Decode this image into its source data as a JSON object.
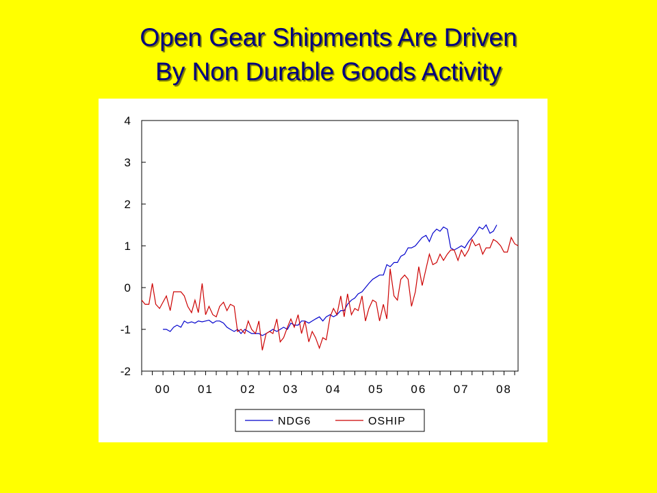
{
  "slide": {
    "title_line1": "Open Gear Shipments Are Driven",
    "title_line2": "By Non Durable Goods Activity"
  },
  "colors": {
    "background": "#FFFF00",
    "title": "#000080",
    "ndg6": "#0000CC",
    "oship": "#CC0000"
  },
  "chart_data": {
    "type": "line",
    "title": "",
    "xlabel": "",
    "ylabel": "",
    "ylim": [
      -2,
      4
    ],
    "yticks": [
      4,
      3,
      2,
      1,
      0,
      -1,
      -2
    ],
    "xlim": [
      2000.0,
      2008.83
    ],
    "xticks": [
      {
        "label": "00",
        "value": 2000.5
      },
      {
        "label": "01",
        "value": 2001.5
      },
      {
        "label": "02",
        "value": 2002.5
      },
      {
        "label": "03",
        "value": 2003.5
      },
      {
        "label": "04",
        "value": 2004.5
      },
      {
        "label": "05",
        "value": 2005.5
      },
      {
        "label": "06",
        "value": 2006.5
      },
      {
        "label": "07",
        "value": 2007.5
      },
      {
        "label": "08",
        "value": 2008.5
      }
    ],
    "grid": false,
    "legend": "bottom",
    "series": [
      {
        "name": "NDG6",
        "color": "#0000CC",
        "x": [
          2000.5,
          2000.58,
          2000.67,
          2000.75,
          2000.83,
          2000.92,
          2001.0,
          2001.08,
          2001.17,
          2001.25,
          2001.33,
          2001.42,
          2001.5,
          2001.58,
          2001.67,
          2001.75,
          2001.83,
          2001.92,
          2002.0,
          2002.08,
          2002.17,
          2002.25,
          2002.33,
          2002.42,
          2002.5,
          2002.58,
          2002.67,
          2002.75,
          2002.83,
          2002.92,
          2003.0,
          2003.08,
          2003.17,
          2003.25,
          2003.33,
          2003.42,
          2003.5,
          2003.58,
          2003.67,
          2003.75,
          2003.83,
          2003.92,
          2004.0,
          2004.08,
          2004.17,
          2004.25,
          2004.33,
          2004.42,
          2004.5,
          2004.58,
          2004.67,
          2004.75,
          2004.83,
          2004.92,
          2005.0,
          2005.08,
          2005.17,
          2005.25,
          2005.33,
          2005.42,
          2005.5,
          2005.58,
          2005.67,
          2005.75,
          2005.83,
          2005.92,
          2006.0,
          2006.08,
          2006.17,
          2006.25,
          2006.33,
          2006.42,
          2006.5,
          2006.58,
          2006.67,
          2006.75,
          2006.83,
          2006.92,
          2007.0,
          2007.08,
          2007.17,
          2007.25,
          2007.33,
          2007.42,
          2007.5,
          2007.58,
          2007.67,
          2007.75,
          2007.83,
          2007.92,
          2008.0,
          2008.08,
          2008.17,
          2008.25,
          2008.33
        ],
        "y": [
          -1.0,
          -1.0,
          -1.05,
          -0.95,
          -0.9,
          -0.95,
          -0.8,
          -0.85,
          -0.82,
          -0.85,
          -0.8,
          -0.82,
          -0.8,
          -0.78,
          -0.85,
          -0.8,
          -0.8,
          -0.85,
          -0.95,
          -1.0,
          -1.05,
          -1.0,
          -1.1,
          -1.0,
          -1.05,
          -1.1,
          -1.1,
          -1.1,
          -1.15,
          -1.1,
          -1.05,
          -1.0,
          -1.05,
          -1.0,
          -0.95,
          -1.0,
          -0.85,
          -0.9,
          -0.9,
          -0.8,
          -0.8,
          -0.85,
          -0.8,
          -0.75,
          -0.7,
          -0.8,
          -0.7,
          -0.65,
          -0.7,
          -0.65,
          -0.55,
          -0.55,
          -0.4,
          -0.3,
          -0.25,
          -0.15,
          -0.1,
          0.0,
          0.1,
          0.2,
          0.25,
          0.3,
          0.3,
          0.55,
          0.5,
          0.6,
          0.6,
          0.75,
          0.8,
          0.95,
          0.95,
          1.0,
          1.1,
          1.2,
          1.25,
          1.1,
          1.3,
          1.4,
          1.35,
          1.45,
          1.4,
          0.95,
          0.9,
          0.95,
          1.0,
          0.95,
          1.1,
          1.2,
          1.3,
          1.45,
          1.4,
          1.5,
          1.3,
          1.35,
          1.5
        ]
      },
      {
        "name": "OSHIP",
        "color": "#CC0000",
        "x": [
          2000.0,
          2000.08,
          2000.17,
          2000.25,
          2000.33,
          2000.42,
          2000.5,
          2000.58,
          2000.67,
          2000.75,
          2000.83,
          2000.92,
          2001.0,
          2001.08,
          2001.17,
          2001.25,
          2001.33,
          2001.42,
          2001.5,
          2001.58,
          2001.67,
          2001.75,
          2001.83,
          2001.92,
          2002.0,
          2002.08,
          2002.17,
          2002.25,
          2002.33,
          2002.42,
          2002.5,
          2002.58,
          2002.67,
          2002.75,
          2002.83,
          2002.92,
          2003.0,
          2003.08,
          2003.17,
          2003.25,
          2003.33,
          2003.42,
          2003.5,
          2003.58,
          2003.67,
          2003.75,
          2003.83,
          2003.92,
          2004.0,
          2004.08,
          2004.17,
          2004.25,
          2004.33,
          2004.42,
          2004.5,
          2004.58,
          2004.67,
          2004.75,
          2004.83,
          2004.92,
          2005.0,
          2005.08,
          2005.17,
          2005.25,
          2005.33,
          2005.42,
          2005.5,
          2005.58,
          2005.67,
          2005.75,
          2005.83,
          2005.92,
          2006.0,
          2006.08,
          2006.17,
          2006.25,
          2006.33,
          2006.42,
          2006.5,
          2006.58,
          2006.67,
          2006.75,
          2006.83,
          2006.92,
          2007.0,
          2007.08,
          2007.17,
          2007.25,
          2007.33,
          2007.42,
          2007.5,
          2007.58,
          2007.67,
          2007.75,
          2007.83,
          2007.92,
          2008.0,
          2008.08,
          2008.17,
          2008.25,
          2008.33,
          2008.42,
          2008.5,
          2008.58,
          2008.67,
          2008.75,
          2008.83
        ],
        "y": [
          -0.3,
          -0.4,
          -0.4,
          0.1,
          -0.4,
          -0.5,
          -0.35,
          -0.2,
          -0.55,
          -0.1,
          -0.1,
          -0.1,
          -0.2,
          -0.45,
          -0.6,
          -0.3,
          -0.6,
          0.1,
          -0.65,
          -0.45,
          -0.65,
          -0.7,
          -0.45,
          -0.35,
          -0.55,
          -0.4,
          -0.45,
          -1.05,
          -1.0,
          -1.1,
          -0.8,
          -1.0,
          -1.1,
          -0.8,
          -1.5,
          -1.1,
          -1.05,
          -1.1,
          -0.75,
          -1.3,
          -1.2,
          -0.95,
          -0.75,
          -0.95,
          -0.65,
          -1.1,
          -0.8,
          -1.3,
          -1.05,
          -1.2,
          -1.45,
          -1.2,
          -1.25,
          -0.7,
          -0.5,
          -0.65,
          -0.2,
          -0.7,
          -0.15,
          -0.65,
          -0.5,
          -0.55,
          -0.2,
          -0.8,
          -0.5,
          -0.3,
          -0.35,
          -0.8,
          -0.4,
          -0.75,
          0.45,
          -0.2,
          -0.3,
          0.2,
          0.3,
          0.2,
          -0.45,
          -0.1,
          0.5,
          0.05,
          0.45,
          0.8,
          0.55,
          0.6,
          0.8,
          0.65,
          0.8,
          0.9,
          0.9,
          0.65,
          0.9,
          0.75,
          0.9,
          1.15,
          1.0,
          1.05,
          0.8,
          0.95,
          0.95,
          1.15,
          1.1,
          1.0,
          0.85,
          0.85,
          1.2,
          1.05,
          1.0
        ]
      }
    ]
  }
}
